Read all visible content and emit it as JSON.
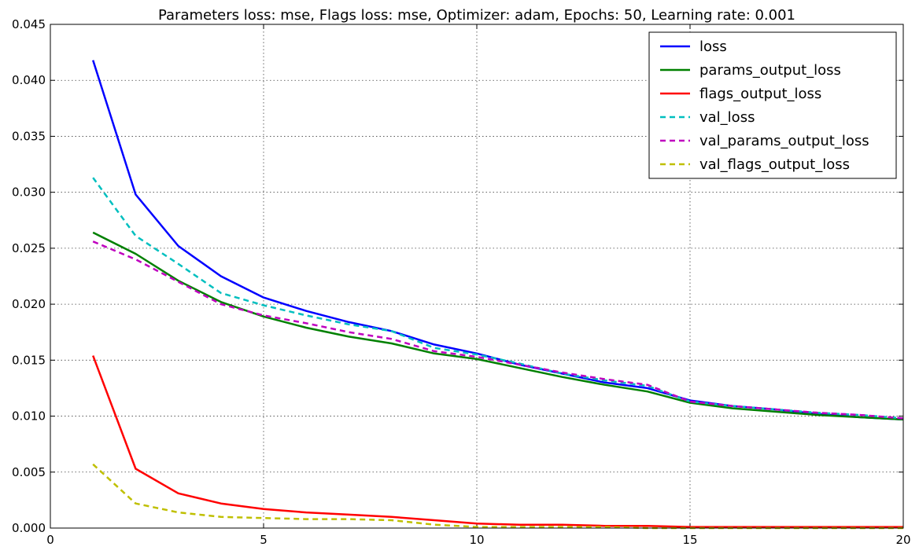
{
  "chart_data": {
    "type": "line",
    "title": "Parameters loss: mse, Flags loss: mse, Optimizer: adam, Epochs: 50, Learning rate: 0.001",
    "xlabel": "",
    "ylabel": "",
    "xlim": [
      0,
      20
    ],
    "ylim": [
      0,
      0.045
    ],
    "x_ticks": [
      "0",
      "5",
      "10",
      "15",
      "20"
    ],
    "y_ticks": [
      "0.000",
      "0.005",
      "0.010",
      "0.015",
      "0.020",
      "0.025",
      "0.030",
      "0.035",
      "0.040",
      "0.045"
    ],
    "grid": true,
    "legend_position": "top-right",
    "x": [
      1,
      2,
      3,
      4,
      5,
      6,
      7,
      8,
      9,
      10,
      11,
      12,
      13,
      14,
      15,
      16,
      17,
      18,
      19,
      20
    ],
    "series": [
      {
        "name": "loss",
        "color": "#0000ff",
        "style": "solid",
        "values": [
          0.0418,
          0.0298,
          0.0252,
          0.0225,
          0.0206,
          0.0194,
          0.0184,
          0.0176,
          0.0164,
          0.0156,
          0.0146,
          0.0138,
          0.013,
          0.0125,
          0.0114,
          0.0109,
          0.0106,
          0.0102,
          0.0099,
          0.0097
        ]
      },
      {
        "name": "params_output_loss",
        "color": "#008000",
        "style": "solid",
        "values": [
          0.0264,
          0.0245,
          0.0221,
          0.0202,
          0.0189,
          0.0179,
          0.0171,
          0.0165,
          0.0156,
          0.0151,
          0.0143,
          0.0135,
          0.0128,
          0.0122,
          0.0112,
          0.0107,
          0.0104,
          0.0101,
          0.0099,
          0.0097
        ]
      },
      {
        "name": "flags_output_loss",
        "color": "#ff0000",
        "style": "solid",
        "values": [
          0.0154,
          0.0053,
          0.0031,
          0.0022,
          0.0017,
          0.0014,
          0.0012,
          0.001,
          0.0007,
          0.0004,
          0.0003,
          0.0003,
          0.0002,
          0.0002,
          0.0001,
          0.0001,
          0.0001,
          0.0001,
          0.0001,
          0.0001
        ]
      },
      {
        "name": "val_loss",
        "color": "#00bfbf",
        "style": "dashed",
        "values": [
          0.0313,
          0.0261,
          0.0236,
          0.021,
          0.0199,
          0.019,
          0.0182,
          0.0176,
          0.0161,
          0.0155,
          0.0147,
          0.0138,
          0.0132,
          0.0127,
          0.0113,
          0.0109,
          0.0106,
          0.0103,
          0.0101,
          0.0098
        ]
      },
      {
        "name": "val_params_output_loss",
        "color": "#bf00bf",
        "style": "dashed",
        "values": [
          0.0256,
          0.024,
          0.022,
          0.02,
          0.019,
          0.0183,
          0.0175,
          0.0169,
          0.0158,
          0.0153,
          0.0146,
          0.0139,
          0.0133,
          0.0128,
          0.0113,
          0.0109,
          0.0106,
          0.0103,
          0.0101,
          0.0098
        ]
      },
      {
        "name": "val_flags_output_loss",
        "color": "#bfbf00",
        "style": "dashed",
        "values": [
          0.0057,
          0.0022,
          0.0014,
          0.001,
          0.0009,
          0.0008,
          0.0008,
          0.0007,
          0.0003,
          0.0001,
          0.0001,
          0.0001,
          0.0001,
          0.0,
          0.0,
          0.0,
          0.0,
          0.0,
          0.0,
          0.0
        ]
      }
    ]
  }
}
